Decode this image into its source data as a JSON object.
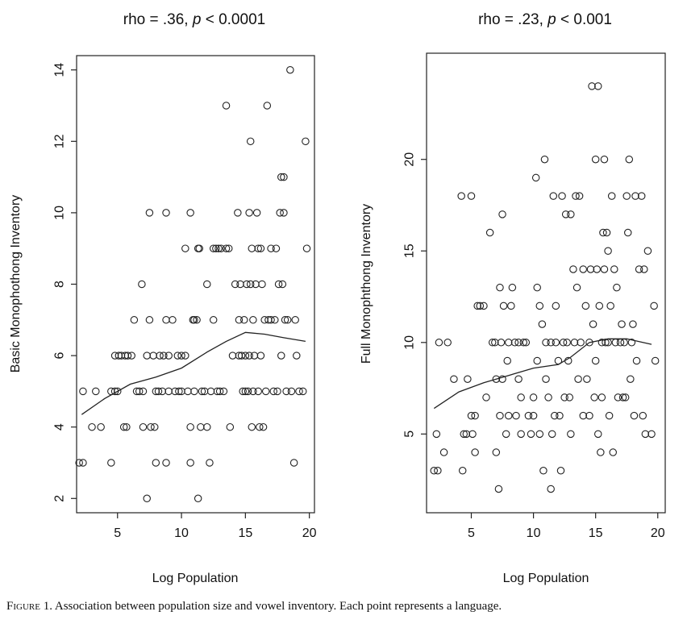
{
  "caption": {
    "label": "Figure 1.",
    "text": "Association between population size and vowel inventory. Each point represents a language."
  },
  "chart_data": [
    {
      "type": "scatter",
      "title_prefix": "rho = .36, ",
      "title_p": "p",
      "title_suffix": " < 0.0001",
      "xlabel": "Log Population",
      "ylabel": "Basic Monophothong Inventory",
      "xlim": [
        1.8,
        20.4
      ],
      "ylim": [
        1.6,
        14.4
      ],
      "xticks": [
        5,
        10,
        15,
        20
      ],
      "yticks": [
        2,
        4,
        6,
        8,
        10,
        12,
        14
      ],
      "points": [
        [
          2.0,
          3
        ],
        [
          2.3,
          3
        ],
        [
          2.3,
          5
        ],
        [
          3.0,
          4
        ],
        [
          3.3,
          5
        ],
        [
          3.7,
          4
        ],
        [
          4.5,
          3
        ],
        [
          4.5,
          5
        ],
        [
          4.8,
          5
        ],
        [
          5.0,
          5
        ],
        [
          4.8,
          6
        ],
        [
          5.1,
          6
        ],
        [
          5.3,
          6
        ],
        [
          5.6,
          6
        ],
        [
          5.8,
          6
        ],
        [
          5.5,
          4
        ],
        [
          5.7,
          4
        ],
        [
          6.1,
          6
        ],
        [
          6.3,
          7
        ],
        [
          6.5,
          5
        ],
        [
          6.7,
          5
        ],
        [
          6.9,
          8
        ],
        [
          7.0,
          5
        ],
        [
          7.0,
          4
        ],
        [
          7.3,
          2
        ],
        [
          7.3,
          6
        ],
        [
          7.5,
          10
        ],
        [
          7.5,
          7
        ],
        [
          7.6,
          4
        ],
        [
          7.8,
          6
        ],
        [
          7.9,
          4
        ],
        [
          8.0,
          5
        ],
        [
          8.0,
          3
        ],
        [
          8.2,
          5
        ],
        [
          8.3,
          6
        ],
        [
          8.5,
          5
        ],
        [
          8.6,
          6
        ],
        [
          8.8,
          7
        ],
        [
          8.8,
          10
        ],
        [
          8.8,
          3
        ],
        [
          9.0,
          5
        ],
        [
          9.0,
          6
        ],
        [
          9.3,
          7
        ],
        [
          9.5,
          5
        ],
        [
          9.7,
          6
        ],
        [
          9.8,
          5
        ],
        [
          10.0,
          5
        ],
        [
          10.0,
          6
        ],
        [
          10.3,
          9
        ],
        [
          10.3,
          6
        ],
        [
          10.5,
          5
        ],
        [
          10.7,
          10
        ],
        [
          10.7,
          4
        ],
        [
          10.7,
          3
        ],
        [
          10.9,
          7
        ],
        [
          11.0,
          5
        ],
        [
          11.0,
          7
        ],
        [
          11.2,
          7
        ],
        [
          11.3,
          9
        ],
        [
          11.3,
          2
        ],
        [
          11.4,
          9
        ],
        [
          11.5,
          4
        ],
        [
          11.6,
          5
        ],
        [
          11.8,
          5
        ],
        [
          12.0,
          8
        ],
        [
          12.0,
          4
        ],
        [
          12.2,
          3
        ],
        [
          12.3,
          5
        ],
        [
          12.5,
          9
        ],
        [
          12.5,
          7
        ],
        [
          12.7,
          9
        ],
        [
          12.8,
          5
        ],
        [
          12.9,
          9
        ],
        [
          13.0,
          5
        ],
        [
          13.1,
          9
        ],
        [
          13.3,
          5
        ],
        [
          13.5,
          13
        ],
        [
          13.5,
          9
        ],
        [
          13.7,
          9
        ],
        [
          13.8,
          4
        ],
        [
          14.0,
          6
        ],
        [
          14.2,
          8
        ],
        [
          14.4,
          10
        ],
        [
          14.5,
          7
        ],
        [
          14.5,
          6
        ],
        [
          14.6,
          8
        ],
        [
          14.7,
          6
        ],
        [
          14.8,
          5
        ],
        [
          14.9,
          7
        ],
        [
          15.0,
          6
        ],
        [
          15.0,
          5
        ],
        [
          15.1,
          8
        ],
        [
          15.2,
          5
        ],
        [
          15.3,
          10
        ],
        [
          15.3,
          6
        ],
        [
          15.4,
          12
        ],
        [
          15.4,
          8
        ],
        [
          15.5,
          9
        ],
        [
          15.5,
          4
        ],
        [
          15.6,
          7
        ],
        [
          15.6,
          5
        ],
        [
          15.7,
          6
        ],
        [
          15.8,
          8
        ],
        [
          15.9,
          10
        ],
        [
          16.0,
          9
        ],
        [
          16.0,
          5
        ],
        [
          16.1,
          4
        ],
        [
          16.2,
          9
        ],
        [
          16.2,
          6
        ],
        [
          16.3,
          8
        ],
        [
          16.4,
          4
        ],
        [
          16.5,
          7
        ],
        [
          16.6,
          5
        ],
        [
          16.7,
          13
        ],
        [
          16.8,
          7
        ],
        [
          17.0,
          9
        ],
        [
          17.0,
          7
        ],
        [
          17.2,
          5
        ],
        [
          17.3,
          7
        ],
        [
          17.4,
          9
        ],
        [
          17.5,
          5
        ],
        [
          17.6,
          8
        ],
        [
          17.7,
          10
        ],
        [
          17.8,
          11
        ],
        [
          17.8,
          6
        ],
        [
          17.9,
          8
        ],
        [
          18.0,
          11
        ],
        [
          18.0,
          10
        ],
        [
          18.1,
          7
        ],
        [
          18.2,
          5
        ],
        [
          18.3,
          7
        ],
        [
          18.5,
          14
        ],
        [
          18.6,
          5
        ],
        [
          18.8,
          3
        ],
        [
          18.9,
          7
        ],
        [
          19.0,
          6
        ],
        [
          19.2,
          5
        ],
        [
          19.5,
          5
        ],
        [
          19.7,
          12
        ],
        [
          19.8,
          9
        ]
      ],
      "smooth": [
        [
          2.2,
          4.35
        ],
        [
          4.0,
          4.8
        ],
        [
          6.0,
          5.2
        ],
        [
          8.0,
          5.4
        ],
        [
          10.0,
          5.65
        ],
        [
          12.0,
          6.1
        ],
        [
          13.5,
          6.4
        ],
        [
          15.0,
          6.65
        ],
        [
          16.5,
          6.6
        ],
        [
          18.0,
          6.5
        ],
        [
          19.7,
          6.4
        ]
      ]
    },
    {
      "type": "scatter",
      "title_prefix": "rho = .23, ",
      "title_p": "p",
      "title_suffix": " < 0.001",
      "xlabel": "Log Population",
      "ylabel": "Full Monophthong Inventory",
      "xlim": [
        1.4,
        20.6
      ],
      "ylim": [
        0.7,
        25.8
      ],
      "xticks": [
        5,
        10,
        15,
        20
      ],
      "yticks": [
        5,
        10,
        15,
        20
      ],
      "points": [
        [
          2.0,
          3
        ],
        [
          2.2,
          5
        ],
        [
          2.3,
          3
        ],
        [
          2.4,
          10
        ],
        [
          2.8,
          4
        ],
        [
          3.1,
          10
        ],
        [
          3.6,
          8
        ],
        [
          4.2,
          18
        ],
        [
          4.3,
          3
        ],
        [
          4.4,
          5
        ],
        [
          4.6,
          5
        ],
        [
          4.7,
          8
        ],
        [
          5.0,
          18
        ],
        [
          5.0,
          6
        ],
        [
          5.1,
          5
        ],
        [
          5.3,
          4
        ],
        [
          5.3,
          6
        ],
        [
          5.5,
          12
        ],
        [
          5.7,
          12
        ],
        [
          6.0,
          12
        ],
        [
          6.2,
          7
        ],
        [
          6.5,
          16
        ],
        [
          6.7,
          10
        ],
        [
          6.9,
          10
        ],
        [
          7.0,
          8
        ],
        [
          7.0,
          4
        ],
        [
          7.2,
          2
        ],
        [
          7.3,
          6
        ],
        [
          7.3,
          13
        ],
        [
          7.4,
          10
        ],
        [
          7.5,
          17
        ],
        [
          7.5,
          8
        ],
        [
          7.6,
          12
        ],
        [
          7.8,
          5
        ],
        [
          7.9,
          9
        ],
        [
          8.0,
          10
        ],
        [
          8.0,
          6
        ],
        [
          8.2,
          12
        ],
        [
          8.3,
          13
        ],
        [
          8.5,
          10
        ],
        [
          8.6,
          6
        ],
        [
          8.8,
          10
        ],
        [
          8.8,
          8
        ],
        [
          9.0,
          7
        ],
        [
          9.0,
          5
        ],
        [
          9.2,
          10
        ],
        [
          9.4,
          10
        ],
        [
          9.6,
          6
        ],
        [
          9.8,
          5
        ],
        [
          10.0,
          7
        ],
        [
          10.0,
          6
        ],
        [
          10.2,
          19
        ],
        [
          10.3,
          13
        ],
        [
          10.3,
          9
        ],
        [
          10.5,
          12
        ],
        [
          10.5,
          5
        ],
        [
          10.7,
          11
        ],
        [
          10.8,
          3
        ],
        [
          10.9,
          20
        ],
        [
          11.0,
          10
        ],
        [
          11.0,
          8
        ],
        [
          11.2,
          7
        ],
        [
          11.4,
          2
        ],
        [
          11.4,
          10
        ],
        [
          11.5,
          5
        ],
        [
          11.6,
          18
        ],
        [
          11.7,
          6
        ],
        [
          11.8,
          12
        ],
        [
          11.8,
          10
        ],
        [
          12.0,
          9
        ],
        [
          12.1,
          6
        ],
        [
          12.2,
          3
        ],
        [
          12.3,
          18
        ],
        [
          12.4,
          10
        ],
        [
          12.5,
          7
        ],
        [
          12.6,
          17
        ],
        [
          12.7,
          10
        ],
        [
          12.8,
          9
        ],
        [
          12.9,
          7
        ],
        [
          13.0,
          17
        ],
        [
          13.0,
          5
        ],
        [
          13.2,
          14
        ],
        [
          13.3,
          10
        ],
        [
          13.4,
          18
        ],
        [
          13.5,
          13
        ],
        [
          13.6,
          8
        ],
        [
          13.7,
          18
        ],
        [
          13.8,
          10
        ],
        [
          14.0,
          6
        ],
        [
          14.0,
          14
        ],
        [
          14.2,
          12
        ],
        [
          14.3,
          8
        ],
        [
          14.5,
          10
        ],
        [
          14.5,
          6
        ],
        [
          14.6,
          14
        ],
        [
          14.7,
          24
        ],
        [
          14.8,
          11
        ],
        [
          14.9,
          7
        ],
        [
          15.0,
          20
        ],
        [
          15.0,
          9
        ],
        [
          15.1,
          14
        ],
        [
          15.2,
          5
        ],
        [
          15.2,
          24
        ],
        [
          15.3,
          12
        ],
        [
          15.4,
          4
        ],
        [
          15.5,
          10
        ],
        [
          15.5,
          7
        ],
        [
          15.6,
          16
        ],
        [
          15.7,
          20
        ],
        [
          15.7,
          14
        ],
        [
          15.8,
          10
        ],
        [
          15.9,
          16
        ],
        [
          16.0,
          15
        ],
        [
          16.0,
          10
        ],
        [
          16.1,
          6
        ],
        [
          16.2,
          12
        ],
        [
          16.3,
          18
        ],
        [
          16.4,
          4
        ],
        [
          16.5,
          14
        ],
        [
          16.6,
          10
        ],
        [
          16.7,
          13
        ],
        [
          16.8,
          7
        ],
        [
          17.0,
          10
        ],
        [
          17.1,
          11
        ],
        [
          17.2,
          7
        ],
        [
          17.3,
          10
        ],
        [
          17.4,
          7
        ],
        [
          17.5,
          18
        ],
        [
          17.6,
          16
        ],
        [
          17.7,
          20
        ],
        [
          17.8,
          8
        ],
        [
          17.9,
          10
        ],
        [
          18.0,
          11
        ],
        [
          18.1,
          6
        ],
        [
          18.2,
          18
        ],
        [
          18.3,
          9
        ],
        [
          18.5,
          14
        ],
        [
          18.7,
          18
        ],
        [
          18.8,
          6
        ],
        [
          18.9,
          14
        ],
        [
          19.0,
          5
        ],
        [
          19.2,
          15
        ],
        [
          19.5,
          5
        ],
        [
          19.7,
          12
        ],
        [
          19.8,
          9
        ]
      ],
      "smooth": [
        [
          2.0,
          6.4
        ],
        [
          4.0,
          7.3
        ],
        [
          6.0,
          7.8
        ],
        [
          8.0,
          8.2
        ],
        [
          10.0,
          8.6
        ],
        [
          12.0,
          8.8
        ],
        [
          13.0,
          9.2
        ],
        [
          14.5,
          10.0
        ],
        [
          16.0,
          10.2
        ],
        [
          17.5,
          10.2
        ],
        [
          19.5,
          9.9
        ]
      ]
    }
  ]
}
